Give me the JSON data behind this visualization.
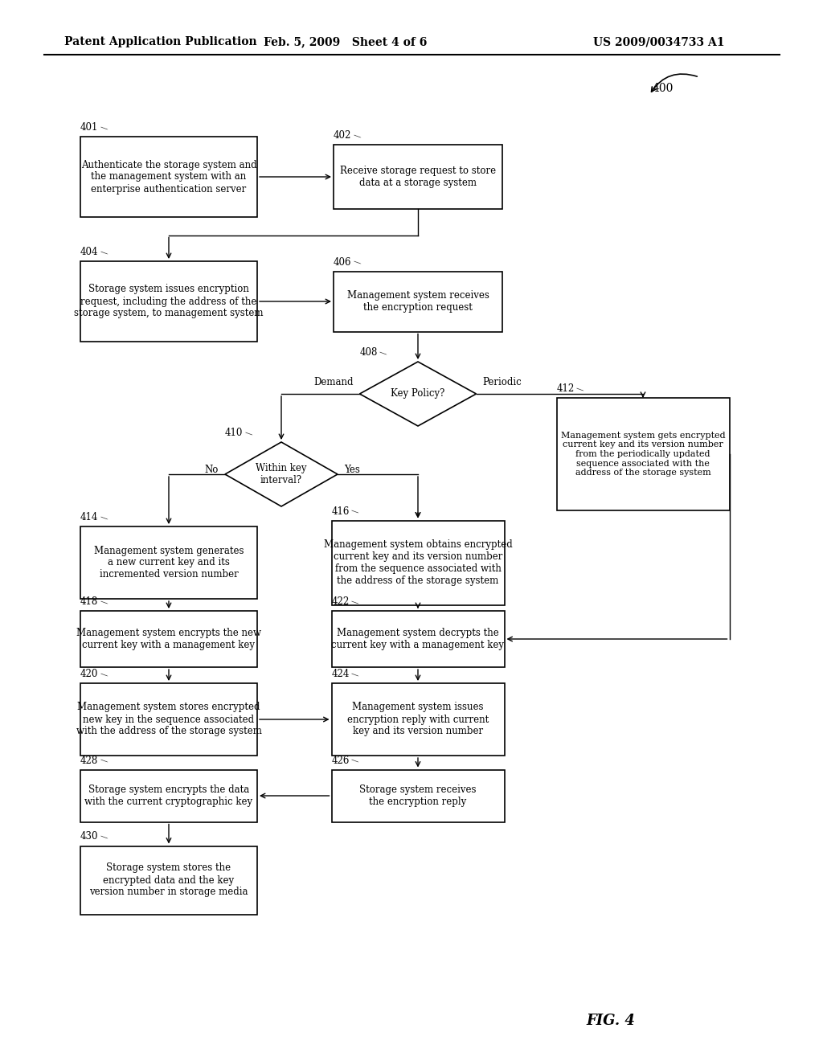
{
  "header_left": "Patent Application Publication",
  "header_mid": "Feb. 5, 2009   Sheet 4 of 6",
  "header_right": "US 2009/0034733 A1",
  "fig_label": "FIG. 4",
  "background_color": "#ffffff",
  "node_texts": {
    "401": "Authenticate the storage system and\nthe management system with an\nenterprise authentication server",
    "402": "Receive storage request to store\ndata at a storage system",
    "404": "Storage system issues encryption\nrequest, including the address of the\nstorage system, to management system",
    "406": "Management system receives\nthe encryption request",
    "408": "Key Policy?",
    "410": "Within key\ninterval?",
    "412": "Management system gets encrypted\ncurrent key and its version number\nfrom the periodically updated\nsequence associated with the\naddress of the storage system",
    "414": "Management system generates\na new current key and its\nincremented version number",
    "416": "Management system obtains encrypted\ncurrent key and its version number\nfrom the sequence associated with\nthe address of the storage system",
    "418": "Management system encrypts the new\ncurrent key with a management key",
    "422": "Management system decrypts the\ncurrent key with a management key",
    "420": "Management system stores encrypted\nnew key in the sequence associated\nwith the address of the storage system",
    "424": "Management system issues\nencryption reply with current\nkey and its version number",
    "426": "Storage system receives\nthe encryption reply",
    "428": "Storage system encrypts the data\nwith the current cryptographic key",
    "430": "Storage system stores the\nencrypted data and the key\nversion number in storage media"
  }
}
